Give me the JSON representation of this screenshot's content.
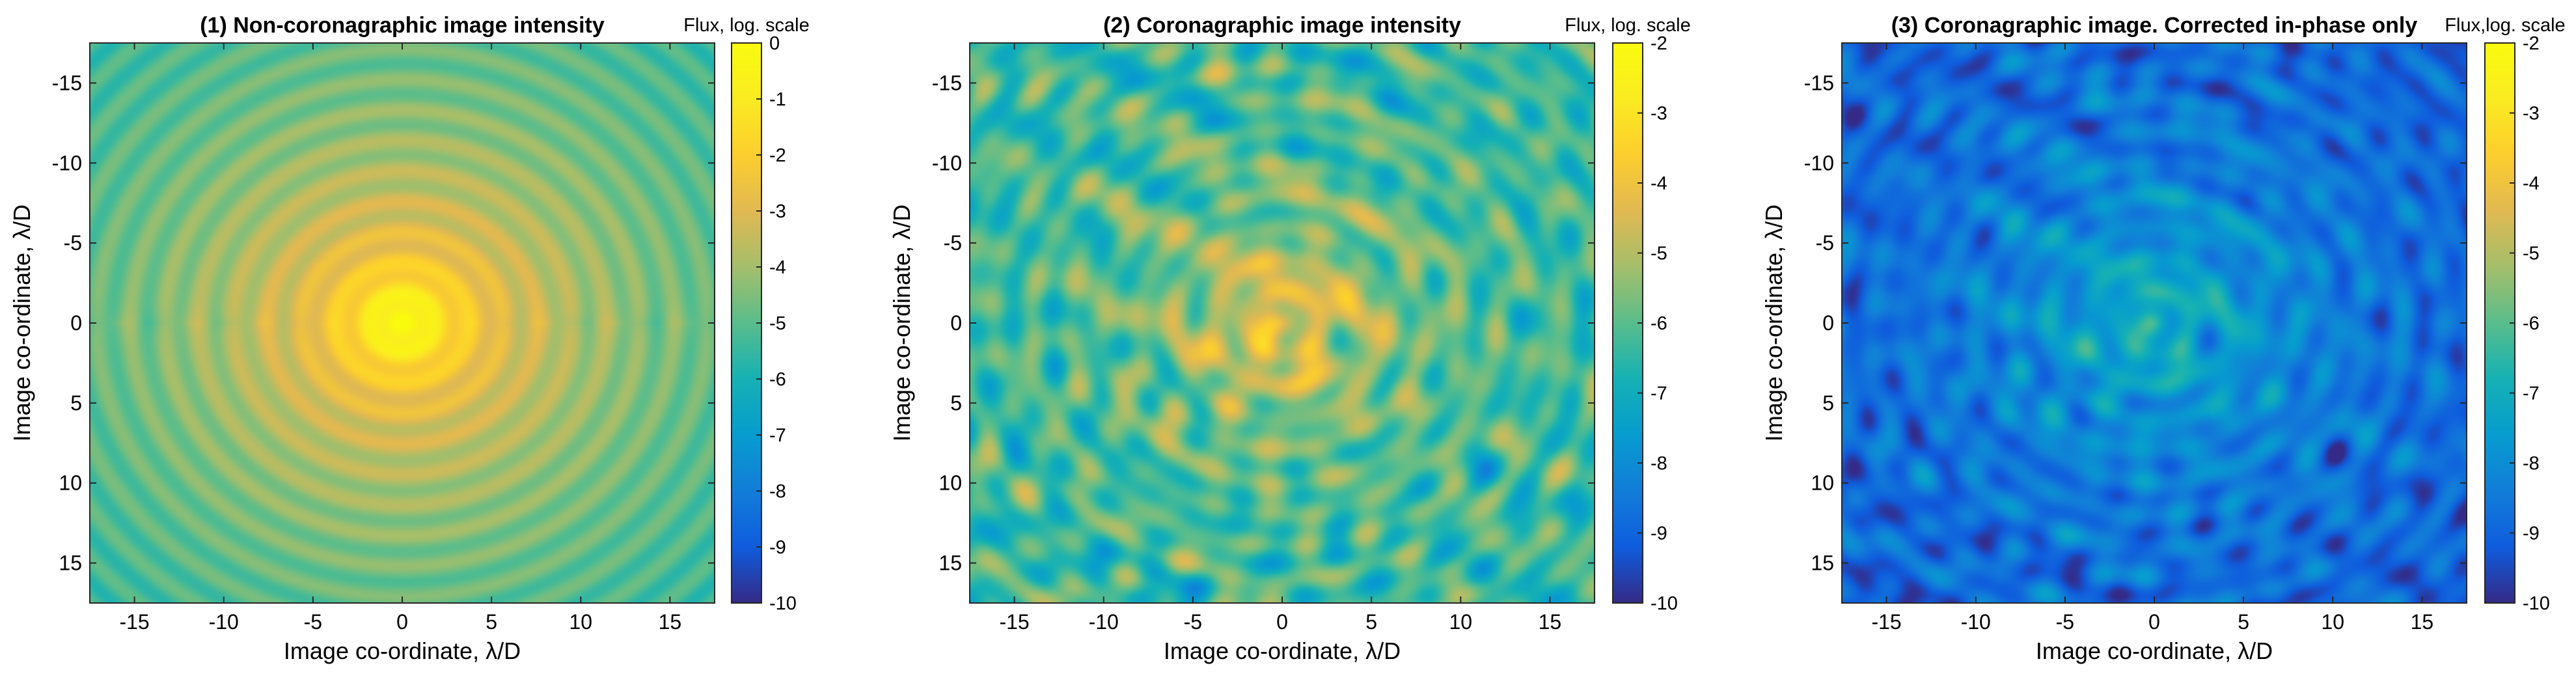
{
  "chart_data": [
    {
      "type": "heatmap",
      "title": "(1) Non-coronagraphic image intensity",
      "xlabel": "Image co-ordinate, λ/D",
      "ylabel": "Image co-ordinate, λ/D",
      "xlim": [
        -17.5,
        17.5
      ],
      "ylim": [
        -17.5,
        17.5
      ],
      "xticks": [
        -15,
        -10,
        -5,
        0,
        5,
        10,
        15
      ],
      "xtick_labels": [
        "-15",
        "-10",
        "-5",
        "0",
        "5",
        "10",
        "15"
      ],
      "yticks": [
        -15,
        -10,
        -5,
        0,
        5,
        10,
        15
      ],
      "ytick_labels": [
        "-15",
        "-10",
        "-5",
        "0",
        "5",
        "10",
        "15"
      ],
      "colorbar": {
        "title": "Flux, log. scale",
        "range": [
          -10,
          0
        ],
        "ticks": [
          0,
          -1,
          -2,
          -3,
          -4,
          -5,
          -6,
          -7,
          -8,
          -9,
          -10
        ],
        "tick_labels": [
          "0",
          "-1",
          "-2",
          "-3",
          "-4",
          "-5",
          "-6",
          "-7",
          "-8",
          "-9",
          "-10"
        ]
      },
      "colormap": "parula",
      "pattern": "concentric Airy rings, peak 0 at center, about -5 at the edges"
    },
    {
      "type": "heatmap",
      "title": "(2) Coronagraphic image intensity",
      "xlabel": "Image co-ordinate, λ/D",
      "ylabel": "Image co-ordinate, λ/D",
      "xlim": [
        -17.5,
        17.5
      ],
      "ylim": [
        -17.5,
        17.5
      ],
      "xticks": [
        -15,
        -10,
        -5,
        0,
        5,
        10,
        15
      ],
      "xtick_labels": [
        "-15",
        "-10",
        "-5",
        "0",
        "5",
        "10",
        "15"
      ],
      "yticks": [
        -15,
        -10,
        -5,
        0,
        5,
        10,
        15
      ],
      "ytick_labels": [
        "-15",
        "-10",
        "-5",
        "0",
        "5",
        "10",
        "15"
      ],
      "colorbar": {
        "title": "Flux, log. scale",
        "range": [
          -10,
          -2
        ],
        "ticks": [
          -2,
          -3,
          -4,
          -5,
          -6,
          -7,
          -8,
          -9,
          -10
        ],
        "tick_labels": [
          "-2",
          "-3",
          "-4",
          "-5",
          "-6",
          "-7",
          "-8",
          "-9",
          "-10"
        ]
      },
      "colormap": "parula",
      "pattern": "speckle field, brightest about -3 near center, about -6 to -8 elsewhere"
    },
    {
      "type": "heatmap",
      "title": "(3) Coronagraphic image. Corrected in-phase only",
      "xlabel": "Image co-ordinate, λ/D",
      "ylabel": "Image co-ordinate, λ/D",
      "xlim": [
        -17.5,
        17.5
      ],
      "ylim": [
        -17.5,
        17.5
      ],
      "xticks": [
        -15,
        -10,
        -5,
        0,
        5,
        10,
        15
      ],
      "xtick_labels": [
        "-15",
        "-10",
        "-5",
        "0",
        "5",
        "10",
        "15"
      ],
      "yticks": [
        -15,
        -10,
        -5,
        0,
        5,
        10,
        15
      ],
      "ytick_labels": [
        "-15",
        "-10",
        "-5",
        "0",
        "5",
        "10",
        "15"
      ],
      "colorbar": {
        "title": "Flux,log. scale",
        "range": [
          -10,
          -2
        ],
        "ticks": [
          -2,
          -3,
          -4,
          -5,
          -6,
          -7,
          -8,
          -9,
          -10
        ],
        "tick_labels": [
          "-2",
          "-3",
          "-4",
          "-5",
          "-6",
          "-7",
          "-8",
          "-9",
          "-10"
        ]
      },
      "colormap": "parula",
      "pattern": "corrected speckle field, about -6.5 near center falling to about -9.5 at the corners"
    }
  ]
}
